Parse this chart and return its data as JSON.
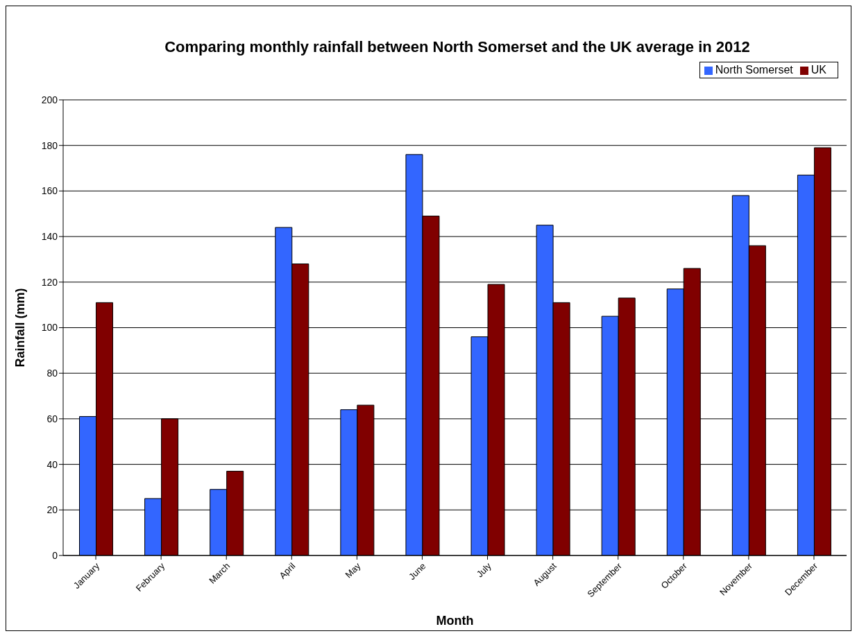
{
  "chart_data": {
    "type": "bar",
    "title": "Comparing monthly rainfall between North Somerset and the UK average in 2012",
    "xlabel": "Month",
    "ylabel": "Rainfall (mm)",
    "categories": [
      "January",
      "February",
      "March",
      "April",
      "May",
      "June",
      "July",
      "August",
      "September",
      "October",
      "November",
      "December"
    ],
    "series": [
      {
        "name": "North Somerset",
        "color": "#3366ff",
        "values": [
          61,
          25,
          29,
          144,
          64,
          176,
          96,
          145,
          105,
          117,
          158,
          167
        ]
      },
      {
        "name": "UK",
        "color": "#800000",
        "values": [
          111,
          60,
          37,
          128,
          66,
          149,
          119,
          111,
          113,
          126,
          136,
          179
        ]
      }
    ],
    "ylim": [
      0,
      200
    ],
    "yticks": [
      0,
      20,
      40,
      60,
      80,
      100,
      120,
      140,
      160,
      180,
      200
    ],
    "grid": "y",
    "legend": "top right"
  }
}
